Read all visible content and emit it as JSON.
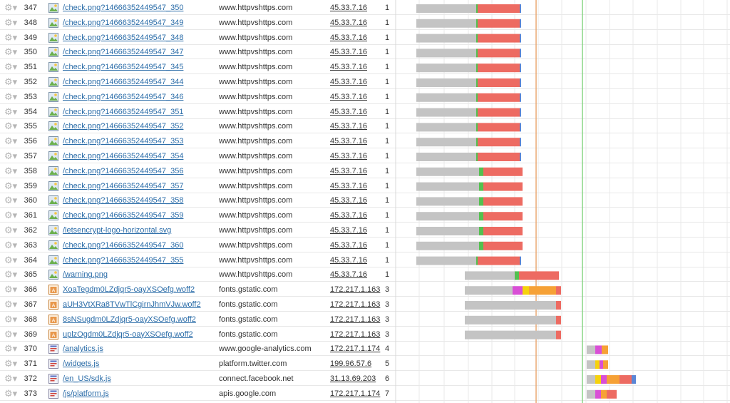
{
  "colors": {
    "link": "#2a6ca8",
    "grid": "#e8e8e8",
    "wait": "#c4c4c4",
    "connect": "#53c04f",
    "download": "#ed6b62",
    "dom_marker": "#e8a36a",
    "load_marker": "#7fd37c",
    "ssl": "#d94fd6",
    "dns": "#f6d20c",
    "ssl_orange": "#f6a136",
    "tail_blue": "#5a86d6"
  },
  "rows": [
    {
      "num": "347",
      "url": "/check.png?14666352449547_350",
      "host": "www.httpvshttps.com",
      "ip": "45.33.7.16",
      "conn": "1",
      "icon": "image-file-icon",
      "waterfall": [
        {
          "start": 584,
          "len": 84,
          "kind": "wait"
        },
        {
          "start": 668,
          "len": 2,
          "kind": "connect"
        },
        {
          "start": 670,
          "len": 59,
          "kind": "download"
        },
        {
          "start": 729,
          "len": 2,
          "kind": "tail_blue"
        }
      ]
    },
    {
      "num": "348",
      "url": "/check.png?14666352449547_349",
      "host": "www.httpvshttps.com",
      "ip": "45.33.7.16",
      "conn": "1",
      "icon": "image-file-icon",
      "waterfall": [
        {
          "start": 584,
          "len": 84,
          "kind": "wait"
        },
        {
          "start": 668,
          "len": 2,
          "kind": "connect"
        },
        {
          "start": 670,
          "len": 59,
          "kind": "download"
        },
        {
          "start": 729,
          "len": 2,
          "kind": "tail_blue"
        }
      ]
    },
    {
      "num": "349",
      "url": "/check.png?14666352449547_348",
      "host": "www.httpvshttps.com",
      "ip": "45.33.7.16",
      "conn": "1",
      "icon": "image-file-icon",
      "waterfall": [
        {
          "start": 584,
          "len": 84,
          "kind": "wait"
        },
        {
          "start": 668,
          "len": 2,
          "kind": "connect"
        },
        {
          "start": 670,
          "len": 59,
          "kind": "download"
        },
        {
          "start": 729,
          "len": 2,
          "kind": "tail_blue"
        }
      ]
    },
    {
      "num": "350",
      "url": "/check.png?14666352449547_347",
      "host": "www.httpvshttps.com",
      "ip": "45.33.7.16",
      "conn": "1",
      "icon": "image-file-icon",
      "waterfall": [
        {
          "start": 584,
          "len": 84,
          "kind": "wait"
        },
        {
          "start": 668,
          "len": 2,
          "kind": "connect"
        },
        {
          "start": 670,
          "len": 59,
          "kind": "download"
        },
        {
          "start": 729,
          "len": 2,
          "kind": "tail_blue"
        }
      ]
    },
    {
      "num": "351",
      "url": "/check.png?14666352449547_345",
      "host": "www.httpvshttps.com",
      "ip": "45.33.7.16",
      "conn": "1",
      "icon": "image-file-icon",
      "waterfall": [
        {
          "start": 584,
          "len": 84,
          "kind": "wait"
        },
        {
          "start": 668,
          "len": 2,
          "kind": "connect"
        },
        {
          "start": 670,
          "len": 59,
          "kind": "download"
        },
        {
          "start": 729,
          "len": 2,
          "kind": "tail_blue"
        }
      ]
    },
    {
      "num": "352",
      "url": "/check.png?14666352449547_344",
      "host": "www.httpvshttps.com",
      "ip": "45.33.7.16",
      "conn": "1",
      "icon": "image-file-icon",
      "waterfall": [
        {
          "start": 584,
          "len": 84,
          "kind": "wait"
        },
        {
          "start": 668,
          "len": 2,
          "kind": "connect"
        },
        {
          "start": 670,
          "len": 59,
          "kind": "download"
        },
        {
          "start": 729,
          "len": 2,
          "kind": "tail_blue"
        }
      ]
    },
    {
      "num": "353",
      "url": "/check.png?14666352449547_346",
      "host": "www.httpvshttps.com",
      "ip": "45.33.7.16",
      "conn": "1",
      "icon": "image-file-icon",
      "waterfall": [
        {
          "start": 584,
          "len": 84,
          "kind": "wait"
        },
        {
          "start": 668,
          "len": 2,
          "kind": "connect"
        },
        {
          "start": 670,
          "len": 59,
          "kind": "download"
        },
        {
          "start": 729,
          "len": 2,
          "kind": "tail_blue"
        }
      ]
    },
    {
      "num": "354",
      "url": "/check.png?14666352449547_351",
      "host": "www.httpvshttps.com",
      "ip": "45.33.7.16",
      "conn": "1",
      "icon": "image-file-icon",
      "waterfall": [
        {
          "start": 584,
          "len": 84,
          "kind": "wait"
        },
        {
          "start": 668,
          "len": 2,
          "kind": "connect"
        },
        {
          "start": 670,
          "len": 59,
          "kind": "download"
        },
        {
          "start": 729,
          "len": 2,
          "kind": "tail_blue"
        }
      ]
    },
    {
      "num": "355",
      "url": "/check.png?14666352449547_352",
      "host": "www.httpvshttps.com",
      "ip": "45.33.7.16",
      "conn": "1",
      "icon": "image-file-icon",
      "waterfall": [
        {
          "start": 584,
          "len": 84,
          "kind": "wait"
        },
        {
          "start": 668,
          "len": 2,
          "kind": "connect"
        },
        {
          "start": 670,
          "len": 59,
          "kind": "download"
        },
        {
          "start": 729,
          "len": 2,
          "kind": "tail_blue"
        }
      ]
    },
    {
      "num": "356",
      "url": "/check.png?14666352449547_353",
      "host": "www.httpvshttps.com",
      "ip": "45.33.7.16",
      "conn": "1",
      "icon": "image-file-icon",
      "waterfall": [
        {
          "start": 584,
          "len": 84,
          "kind": "wait"
        },
        {
          "start": 668,
          "len": 2,
          "kind": "connect"
        },
        {
          "start": 670,
          "len": 59,
          "kind": "download"
        },
        {
          "start": 729,
          "len": 2,
          "kind": "tail_blue"
        }
      ]
    },
    {
      "num": "357",
      "url": "/check.png?14666352449547_354",
      "host": "www.httpvshttps.com",
      "ip": "45.33.7.16",
      "conn": "1",
      "icon": "image-file-icon",
      "waterfall": [
        {
          "start": 584,
          "len": 84,
          "kind": "wait"
        },
        {
          "start": 668,
          "len": 2,
          "kind": "connect"
        },
        {
          "start": 670,
          "len": 59,
          "kind": "download"
        },
        {
          "start": 729,
          "len": 2,
          "kind": "tail_blue"
        }
      ]
    },
    {
      "num": "358",
      "url": "/check.png?14666352449547_356",
      "host": "www.httpvshttps.com",
      "ip": "45.33.7.16",
      "conn": "1",
      "icon": "image-file-icon",
      "waterfall": [
        {
          "start": 584,
          "len": 88,
          "kind": "wait"
        },
        {
          "start": 672,
          "len": 6,
          "kind": "connect"
        },
        {
          "start": 678,
          "len": 55,
          "kind": "download"
        }
      ]
    },
    {
      "num": "359",
      "url": "/check.png?14666352449547_357",
      "host": "www.httpvshttps.com",
      "ip": "45.33.7.16",
      "conn": "1",
      "icon": "image-file-icon",
      "waterfall": [
        {
          "start": 584,
          "len": 88,
          "kind": "wait"
        },
        {
          "start": 672,
          "len": 6,
          "kind": "connect"
        },
        {
          "start": 678,
          "len": 55,
          "kind": "download"
        }
      ]
    },
    {
      "num": "360",
      "url": "/check.png?14666352449547_358",
      "host": "www.httpvshttps.com",
      "ip": "45.33.7.16",
      "conn": "1",
      "icon": "image-file-icon",
      "waterfall": [
        {
          "start": 584,
          "len": 88,
          "kind": "wait"
        },
        {
          "start": 672,
          "len": 6,
          "kind": "connect"
        },
        {
          "start": 678,
          "len": 55,
          "kind": "download"
        }
      ]
    },
    {
      "num": "361",
      "url": "/check.png?14666352449547_359",
      "host": "www.httpvshttps.com",
      "ip": "45.33.7.16",
      "conn": "1",
      "icon": "image-file-icon",
      "waterfall": [
        {
          "start": 584,
          "len": 88,
          "kind": "wait"
        },
        {
          "start": 672,
          "len": 6,
          "kind": "connect"
        },
        {
          "start": 678,
          "len": 55,
          "kind": "download"
        }
      ]
    },
    {
      "num": "362",
      "url": "/letsencrypt-logo-horizontal.svg",
      "host": "www.httpvshttps.com",
      "ip": "45.33.7.16",
      "conn": "1",
      "icon": "image-file-icon",
      "waterfall": [
        {
          "start": 584,
          "len": 88,
          "kind": "wait"
        },
        {
          "start": 672,
          "len": 6,
          "kind": "connect"
        },
        {
          "start": 678,
          "len": 55,
          "kind": "download"
        }
      ]
    },
    {
      "num": "363",
      "url": "/check.png?14666352449547_360",
      "host": "www.httpvshttps.com",
      "ip": "45.33.7.16",
      "conn": "1",
      "icon": "image-file-icon",
      "waterfall": [
        {
          "start": 584,
          "len": 88,
          "kind": "wait"
        },
        {
          "start": 672,
          "len": 6,
          "kind": "connect"
        },
        {
          "start": 678,
          "len": 55,
          "kind": "download"
        }
      ]
    },
    {
      "num": "364",
      "url": "/check.png?14666352449547_355",
      "host": "www.httpvshttps.com",
      "ip": "45.33.7.16",
      "conn": "1",
      "icon": "image-file-icon",
      "waterfall": [
        {
          "start": 584,
          "len": 84,
          "kind": "wait"
        },
        {
          "start": 668,
          "len": 2,
          "kind": "connect"
        },
        {
          "start": 670,
          "len": 59,
          "kind": "download"
        },
        {
          "start": 729,
          "len": 2,
          "kind": "tail_blue"
        }
      ]
    },
    {
      "num": "365",
      "url": "/warning.png",
      "host": "www.httpvshttps.com",
      "ip": "45.33.7.16",
      "conn": "1",
      "icon": "image-file-icon",
      "waterfall": [
        {
          "start": 652,
          "len": 70,
          "kind": "wait"
        },
        {
          "start": 722,
          "len": 6,
          "kind": "connect"
        },
        {
          "start": 728,
          "len": 56,
          "kind": "download"
        }
      ]
    },
    {
      "num": "366",
      "url": "XoaTegdm0LZdjqr5-oayXSOefg.woff2",
      "host": "fonts.gstatic.com",
      "ip": "172.217.1.163",
      "conn": "3",
      "icon": "font-file-icon",
      "waterfall": [
        {
          "start": 652,
          "len": 67,
          "kind": "wait"
        },
        {
          "start": 719,
          "len": 14,
          "kind": "ssl"
        },
        {
          "start": 733,
          "len": 9,
          "kind": "dns"
        },
        {
          "start": 742,
          "len": 38,
          "kind": "ssl_orange"
        },
        {
          "start": 780,
          "len": 7,
          "kind": "download"
        }
      ]
    },
    {
      "num": "367",
      "url": "aUH3VtXRa8TVwTlCgirnJhmVJw.woff2",
      "host": "fonts.gstatic.com",
      "ip": "172.217.1.163",
      "conn": "3",
      "icon": "font-file-icon",
      "waterfall": [
        {
          "start": 652,
          "len": 128,
          "kind": "wait"
        },
        {
          "start": 780,
          "len": 7,
          "kind": "download"
        }
      ]
    },
    {
      "num": "368",
      "url": "8sNSugdm0LZdjqr5-oayXSOefg.woff2",
      "host": "fonts.gstatic.com",
      "ip": "172.217.1.163",
      "conn": "3",
      "icon": "font-file-icon",
      "waterfall": [
        {
          "start": 652,
          "len": 128,
          "kind": "wait"
        },
        {
          "start": 780,
          "len": 7,
          "kind": "download"
        }
      ]
    },
    {
      "num": "369",
      "url": "uplzOgdm0LZdjqr5-oayXSOefg.woff2",
      "host": "fonts.gstatic.com",
      "ip": "172.217.1.163",
      "conn": "3",
      "icon": "font-file-icon",
      "waterfall": [
        {
          "start": 652,
          "len": 128,
          "kind": "wait"
        },
        {
          "start": 780,
          "len": 7,
          "kind": "download"
        }
      ]
    },
    {
      "num": "370",
      "url": "/analytics.js",
      "host": "www.google-analytics.com",
      "ip": "172.217.1.174",
      "conn": "4",
      "icon": "script-file-icon",
      "waterfall": [
        {
          "start": 823,
          "len": 12,
          "kind": "wait"
        },
        {
          "start": 835,
          "len": 9,
          "kind": "ssl"
        },
        {
          "start": 844,
          "len": 9,
          "kind": "ssl_orange"
        }
      ]
    },
    {
      "num": "371",
      "url": "/widgets.js",
      "host": "platform.twitter.com",
      "ip": "199.96.57.6",
      "conn": "5",
      "icon": "script-file-icon",
      "waterfall": [
        {
          "start": 823,
          "len": 12,
          "kind": "wait"
        },
        {
          "start": 835,
          "len": 6,
          "kind": "dns"
        },
        {
          "start": 841,
          "len": 5,
          "kind": "ssl"
        },
        {
          "start": 846,
          "len": 7,
          "kind": "ssl_orange"
        }
      ]
    },
    {
      "num": "372",
      "url": "/en_US/sdk.js",
      "host": "connect.facebook.net",
      "ip": "31.13.69.203",
      "conn": "6",
      "icon": "script-file-icon",
      "waterfall": [
        {
          "start": 823,
          "len": 12,
          "kind": "wait"
        },
        {
          "start": 835,
          "len": 8,
          "kind": "dns"
        },
        {
          "start": 843,
          "len": 8,
          "kind": "ssl"
        },
        {
          "start": 851,
          "len": 18,
          "kind": "ssl_orange"
        },
        {
          "start": 869,
          "len": 17,
          "kind": "download"
        },
        {
          "start": 886,
          "len": 6,
          "kind": "tail_blue"
        }
      ]
    },
    {
      "num": "373",
      "url": "/js/platform.js",
      "host": "apis.google.com",
      "ip": "172.217.1.174",
      "conn": "7",
      "icon": "script-file-icon",
      "waterfall": [
        {
          "start": 823,
          "len": 12,
          "kind": "wait"
        },
        {
          "start": 835,
          "len": 8,
          "kind": "ssl"
        },
        {
          "start": 843,
          "len": 8,
          "kind": "ssl_orange"
        },
        {
          "start": 851,
          "len": 14,
          "kind": "download"
        }
      ]
    }
  ]
}
